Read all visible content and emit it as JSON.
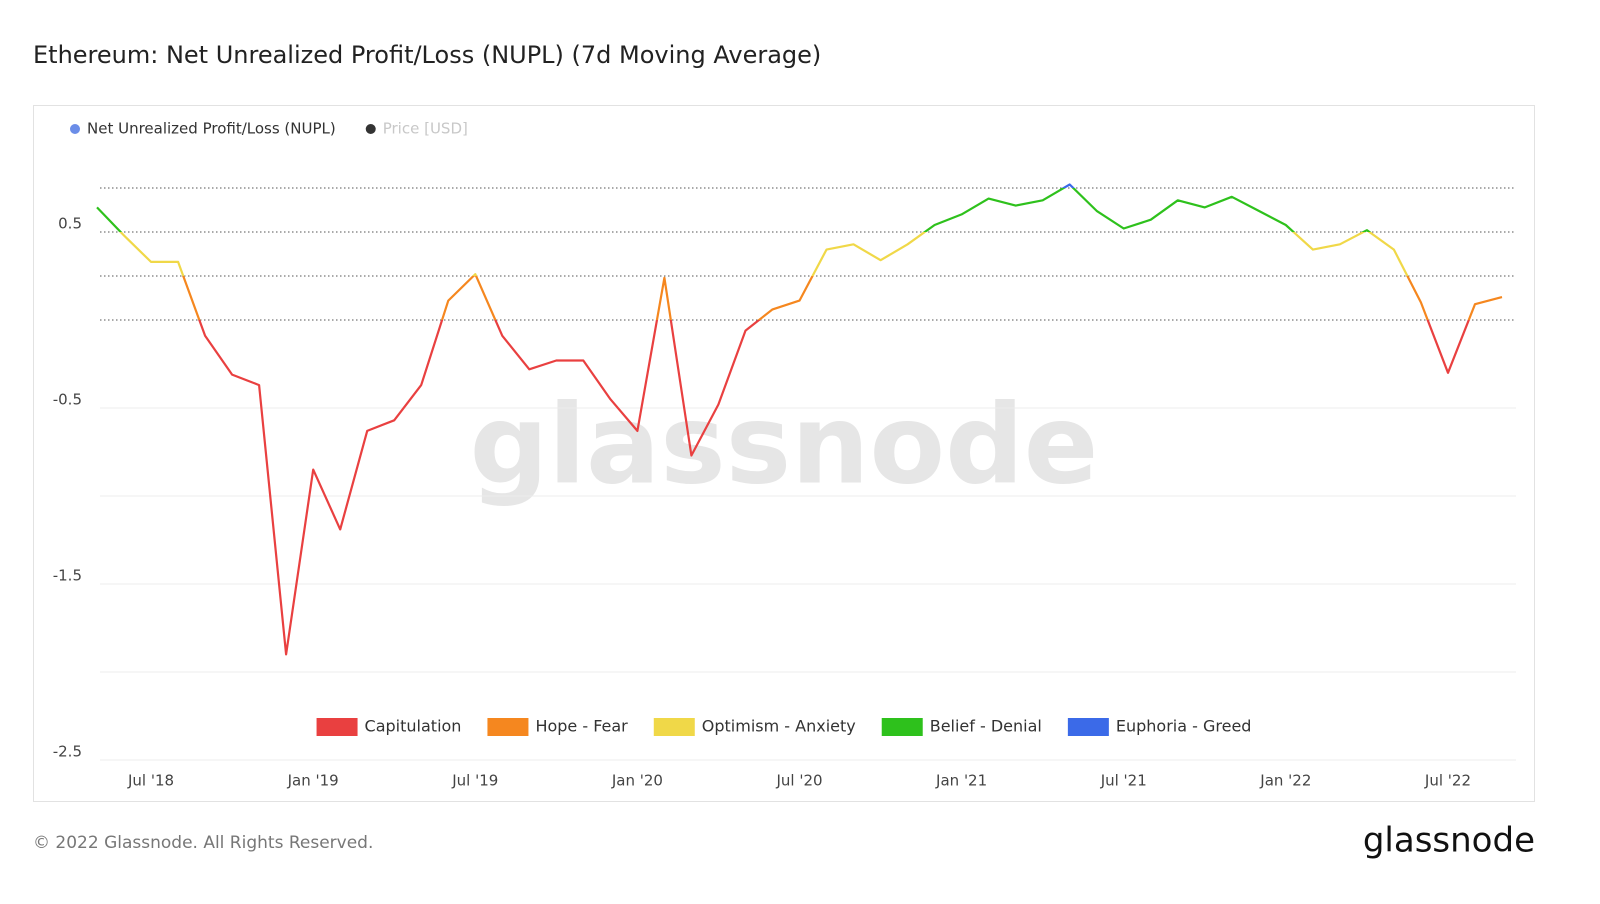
{
  "chart_data": {
    "type": "line",
    "title": "Ethereum: Net Unrealized Profit/Loss (NUPL) (7d Moving Average)",
    "x": [
      "2018-05",
      "2018-06",
      "2018-07",
      "2018-08",
      "2018-09",
      "2018-10",
      "2018-11",
      "2018-12",
      "2019-01",
      "2019-02",
      "2019-03",
      "2019-04",
      "2019-05",
      "2019-06",
      "2019-07",
      "2019-08",
      "2019-09",
      "2019-10",
      "2019-11",
      "2019-12",
      "2020-01",
      "2020-02",
      "2020-03",
      "2020-04",
      "2020-05",
      "2020-06",
      "2020-07",
      "2020-08",
      "2020-09",
      "2020-10",
      "2020-11",
      "2020-12",
      "2021-01",
      "2021-02",
      "2021-03",
      "2021-04",
      "2021-05",
      "2021-06",
      "2021-07",
      "2021-08",
      "2021-09",
      "2021-10",
      "2021-11",
      "2021-12",
      "2022-01",
      "2022-02",
      "2022-03",
      "2022-04",
      "2022-05",
      "2022-06",
      "2022-07",
      "2022-08",
      "2022-09"
    ],
    "series": [
      {
        "name": "Net Unrealized Profit/Loss (NUPL)",
        "color": "#6b8de8",
        "values": [
          0.64,
          0.48,
          0.33,
          0.33,
          -0.09,
          -0.31,
          -0.37,
          -1.9,
          -0.85,
          -1.19,
          -0.63,
          -0.57,
          -0.37,
          0.11,
          0.26,
          -0.09,
          -0.28,
          -0.23,
          -0.23,
          -0.45,
          -0.63,
          0.24,
          -0.77,
          -0.48,
          -0.06,
          0.06,
          0.11,
          0.4,
          0.43,
          0.34,
          0.43,
          0.54,
          0.6,
          0.69,
          0.65,
          0.68,
          0.77,
          0.62,
          0.52,
          0.57,
          0.68,
          0.64,
          0.7,
          0.62,
          0.54,
          0.4,
          0.43,
          0.51,
          0.4,
          0.1,
          -0.3,
          0.09,
          0.13
        ]
      }
    ],
    "inactive_series": [
      {
        "name": "Price [USD]",
        "color": "#333333"
      }
    ],
    "zones": [
      {
        "name": "Capitulation",
        "color": "#e94040",
        "range": [
          null,
          0
        ]
      },
      {
        "name": "Hope - Fear",
        "color": "#f5871f",
        "range": [
          0,
          0.25
        ]
      },
      {
        "name": "Optimism - Anxiety",
        "color": "#f0d848",
        "range": [
          0.25,
          0.5
        ]
      },
      {
        "name": "Belief - Denial",
        "color": "#2ec11c",
        "range": [
          0.5,
          0.75
        ]
      },
      {
        "name": "Euphoria - Greed",
        "color": "#3b6ae8",
        "range": [
          0.75,
          null
        ]
      }
    ],
    "xlim": [
      "2018-05",
      "2022-09"
    ],
    "xticks": [
      {
        "value": "2018-07",
        "label": "Jul '18"
      },
      {
        "value": "2019-01",
        "label": "Jan '19"
      },
      {
        "value": "2019-07",
        "label": "Jul '19"
      },
      {
        "value": "2020-01",
        "label": "Jan '20"
      },
      {
        "value": "2020-07",
        "label": "Jul '20"
      },
      {
        "value": "2021-01",
        "label": "Jan '21"
      },
      {
        "value": "2021-07",
        "label": "Jul '21"
      },
      {
        "value": "2022-01",
        "label": "Jan '22"
      },
      {
        "value": "2022-07",
        "label": "Jul '22"
      }
    ],
    "ylim": [
      -2.5,
      1.0
    ],
    "yticks": [
      0.5,
      -0.5,
      {
        "value": -1,
        "label": null
      },
      -1.5,
      {
        "value": -2,
        "label": null
      },
      -2.5
    ],
    "grid": true,
    "watermark": "glassnode",
    "footer": "© 2022 Glassnode. All Rights Reserved.",
    "logo": "glassnode"
  }
}
